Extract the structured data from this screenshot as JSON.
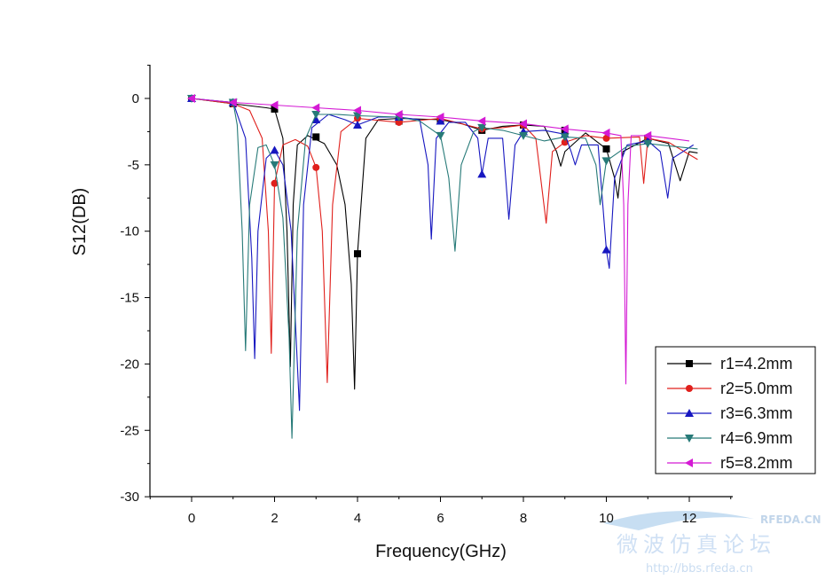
{
  "chart_data": {
    "type": "line",
    "title": "",
    "xlabel": "Frequency(GHz)",
    "ylabel": "S12(DB)",
    "xlim": [
      -1,
      13
    ],
    "ylim": [
      -30,
      2.5
    ],
    "xticks": [
      0,
      2,
      4,
      6,
      8,
      10,
      12
    ],
    "yticks": [
      0,
      -5,
      -10,
      -15,
      -20,
      -25,
      -30
    ],
    "grid": false,
    "legend_position": "bottom-right",
    "series": [
      {
        "name": "r1=4.2mm",
        "color": "#000000",
        "marker": "square",
        "markers": [
          [
            0,
            0
          ],
          [
            1,
            -0.4
          ],
          [
            2,
            -0.8
          ],
          [
            3,
            -2.9
          ],
          [
            4,
            -11.7
          ],
          [
            5,
            -1.7
          ],
          [
            6,
            -1.6
          ],
          [
            7,
            -2.4
          ],
          [
            8,
            -2.0
          ],
          [
            9,
            -2.4
          ],
          [
            10,
            -3.8
          ],
          [
            11,
            -3.0
          ]
        ],
        "points": [
          [
            0,
            0
          ],
          [
            1,
            -0.4
          ],
          [
            1.8,
            -0.7
          ],
          [
            2.0,
            -0.8
          ],
          [
            2.2,
            -3
          ],
          [
            2.3,
            -10
          ],
          [
            2.38,
            -20.2
          ],
          [
            2.45,
            -8
          ],
          [
            2.55,
            -3.5
          ],
          [
            2.8,
            -2.8
          ],
          [
            3.2,
            -3.4
          ],
          [
            3.5,
            -5
          ],
          [
            3.7,
            -8
          ],
          [
            3.85,
            -14
          ],
          [
            3.93,
            -21.9
          ],
          [
            4.0,
            -11.7
          ],
          [
            4.2,
            -3
          ],
          [
            4.5,
            -1.6
          ],
          [
            5,
            -1.5
          ],
          [
            6,
            -1.6
          ],
          [
            6.5,
            -1.9
          ],
          [
            7,
            -2.4
          ],
          [
            7.5,
            -2.1
          ],
          [
            8,
            -2.0
          ],
          [
            8.5,
            -2.1
          ],
          [
            8.8,
            -4
          ],
          [
            8.9,
            -5.1
          ],
          [
            9.0,
            -4
          ],
          [
            9.5,
            -2.6
          ],
          [
            10,
            -3.8
          ],
          [
            10.2,
            -6
          ],
          [
            10.28,
            -7.5
          ],
          [
            10.4,
            -4
          ],
          [
            11,
            -3.0
          ],
          [
            11.5,
            -3.4
          ],
          [
            11.78,
            -6.2
          ],
          [
            12.0,
            -4
          ],
          [
            12.2,
            -4.1
          ]
        ]
      },
      {
        "name": "r2=5.0mm",
        "color": "#e0201c",
        "marker": "circle",
        "markers": [
          [
            0,
            0
          ],
          [
            1,
            -0.4
          ],
          [
            2,
            -6.4
          ],
          [
            3,
            -5.2
          ],
          [
            4,
            -1.5
          ],
          [
            5,
            -1.8
          ],
          [
            6,
            -1.5
          ],
          [
            7,
            -2.3
          ],
          [
            8,
            -2.0
          ],
          [
            9,
            -3.3
          ],
          [
            10,
            -3.0
          ],
          [
            11,
            -3.0
          ]
        ],
        "points": [
          [
            0,
            0
          ],
          [
            1,
            -0.4
          ],
          [
            1.4,
            -0.9
          ],
          [
            1.7,
            -3
          ],
          [
            1.85,
            -10
          ],
          [
            1.92,
            -19.2
          ],
          [
            2.0,
            -6.4
          ],
          [
            2.2,
            -3.5
          ],
          [
            2.5,
            -3.1
          ],
          [
            2.8,
            -3.6
          ],
          [
            3.0,
            -5.2
          ],
          [
            3.15,
            -10
          ],
          [
            3.27,
            -21.4
          ],
          [
            3.4,
            -8
          ],
          [
            3.6,
            -2.5
          ],
          [
            4,
            -1.5
          ],
          [
            5,
            -1.8
          ],
          [
            6,
            -1.5
          ],
          [
            7,
            -2.3
          ],
          [
            7.5,
            -2.2
          ],
          [
            8,
            -2.0
          ],
          [
            8.3,
            -3
          ],
          [
            8.55,
            -9.4
          ],
          [
            8.7,
            -4
          ],
          [
            9,
            -3.3
          ],
          [
            9.5,
            -2.8
          ],
          [
            10,
            -3.0
          ],
          [
            10.8,
            -2.9
          ],
          [
            10.9,
            -6.4
          ],
          [
            11.0,
            -3.0
          ],
          [
            11.5,
            -3.3
          ],
          [
            12.2,
            -4.6
          ]
        ]
      },
      {
        "name": "r3=6.3mm",
        "color": "#1717c0",
        "marker": "triangle-up",
        "markers": [
          [
            0,
            0
          ],
          [
            1,
            -0.3
          ],
          [
            2,
            -3.9
          ],
          [
            3,
            -1.6
          ],
          [
            4,
            -2.0
          ],
          [
            5,
            -1.4
          ],
          [
            6,
            -1.7
          ],
          [
            7,
            -5.7
          ],
          [
            8,
            -2.5
          ],
          [
            9,
            -2.7
          ],
          [
            10,
            -11.4
          ],
          [
            11,
            -3.2
          ]
        ],
        "points": [
          [
            0,
            0
          ],
          [
            1,
            -0.3
          ],
          [
            1.3,
            -3
          ],
          [
            1.45,
            -12
          ],
          [
            1.52,
            -19.6
          ],
          [
            1.6,
            -10
          ],
          [
            1.8,
            -4.5
          ],
          [
            2.0,
            -3.9
          ],
          [
            2.2,
            -5
          ],
          [
            2.4,
            -10
          ],
          [
            2.55,
            -20
          ],
          [
            2.6,
            -23.5
          ],
          [
            2.7,
            -8
          ],
          [
            2.9,
            -2.2
          ],
          [
            3.3,
            -1.2
          ],
          [
            3.7,
            -1.6
          ],
          [
            4,
            -2.0
          ],
          [
            4.5,
            -1.4
          ],
          [
            5,
            -1.4
          ],
          [
            5.5,
            -1.6
          ],
          [
            5.7,
            -5
          ],
          [
            5.78,
            -10.6
          ],
          [
            5.9,
            -3
          ],
          [
            6.2,
            -1.8
          ],
          [
            6.6,
            -1.8
          ],
          [
            6.9,
            -3
          ],
          [
            7.0,
            -5.7
          ],
          [
            7.15,
            -3
          ],
          [
            7.5,
            -3
          ],
          [
            7.65,
            -9.1
          ],
          [
            7.8,
            -3.5
          ],
          [
            8,
            -2.5
          ],
          [
            8.5,
            -2.4
          ],
          [
            9,
            -2.7
          ],
          [
            9.15,
            -4
          ],
          [
            9.25,
            -5
          ],
          [
            9.4,
            -3.5
          ],
          [
            9.8,
            -3.5
          ],
          [
            10.0,
            -11.4
          ],
          [
            10.07,
            -12.8
          ],
          [
            10.2,
            -6
          ],
          [
            10.5,
            -3.5
          ],
          [
            11,
            -3.2
          ],
          [
            11.3,
            -4
          ],
          [
            11.48,
            -7.5
          ],
          [
            11.6,
            -4.5
          ],
          [
            12.1,
            -3.5
          ]
        ]
      },
      {
        "name": "r4=6.9mm",
        "color": "#277a78",
        "marker": "triangle-down",
        "markers": [
          [
            0,
            0
          ],
          [
            1,
            -0.3
          ],
          [
            2,
            -5.0
          ],
          [
            3,
            -1.2
          ],
          [
            4,
            -1.3
          ],
          [
            5,
            -1.4
          ],
          [
            6,
            -2.8
          ],
          [
            7,
            -2.2
          ],
          [
            8,
            -2.8
          ],
          [
            9,
            -2.9
          ],
          [
            10,
            -4.7
          ],
          [
            11,
            -3.4
          ]
        ],
        "points": [
          [
            0,
            0
          ],
          [
            1,
            -0.3
          ],
          [
            1.1,
            -2
          ],
          [
            1.22,
            -10
          ],
          [
            1.3,
            -19
          ],
          [
            1.4,
            -8
          ],
          [
            1.6,
            -3.7
          ],
          [
            1.8,
            -3.5
          ],
          [
            2.0,
            -5.0
          ],
          [
            2.2,
            -9
          ],
          [
            2.35,
            -18
          ],
          [
            2.42,
            -25.6
          ],
          [
            2.55,
            -10
          ],
          [
            2.75,
            -3
          ],
          [
            3,
            -1.2
          ],
          [
            3.5,
            -1.2
          ],
          [
            4,
            -1.3
          ],
          [
            5,
            -1.4
          ],
          [
            5.5,
            -1.7
          ],
          [
            6,
            -2.8
          ],
          [
            6.2,
            -6
          ],
          [
            6.35,
            -11.5
          ],
          [
            6.5,
            -5
          ],
          [
            6.8,
            -2.5
          ],
          [
            7,
            -2.2
          ],
          [
            7.5,
            -2.4
          ],
          [
            8,
            -2.8
          ],
          [
            8.5,
            -3.2
          ],
          [
            9,
            -2.9
          ],
          [
            9.5,
            -3.0
          ],
          [
            9.75,
            -5
          ],
          [
            9.85,
            -8
          ],
          [
            10,
            -4.7
          ],
          [
            10.5,
            -3.6
          ],
          [
            11,
            -3.4
          ],
          [
            12.2,
            -3.8
          ]
        ]
      },
      {
        "name": "r5=8.2mm",
        "color": "#d41ad4",
        "marker": "triangle-left",
        "markers": [
          [
            0,
            0
          ],
          [
            1,
            -0.3
          ],
          [
            2,
            -0.5
          ],
          [
            3,
            -0.7
          ],
          [
            4,
            -0.9
          ],
          [
            5,
            -1.2
          ],
          [
            6,
            -1.4
          ],
          [
            7,
            -1.7
          ],
          [
            8,
            -1.9
          ],
          [
            9,
            -2.3
          ],
          [
            10,
            -2.6
          ],
          [
            11,
            -2.8
          ]
        ],
        "points": [
          [
            0,
            0
          ],
          [
            1,
            -0.3
          ],
          [
            2,
            -0.5
          ],
          [
            3,
            -0.7
          ],
          [
            4,
            -0.9
          ],
          [
            5,
            -1.2
          ],
          [
            6,
            -1.4
          ],
          [
            7,
            -1.7
          ],
          [
            8,
            -1.9
          ],
          [
            9,
            -2.3
          ],
          [
            10,
            -2.6
          ],
          [
            10.35,
            -2.8
          ],
          [
            10.42,
            -8
          ],
          [
            10.47,
            -21.5
          ],
          [
            10.52,
            -8
          ],
          [
            10.6,
            -2.8
          ],
          [
            11,
            -2.8
          ],
          [
            12,
            -3.2
          ]
        ]
      }
    ]
  },
  "watermark": {
    "site_label": "RFEDA.CN",
    "forum_name": "微波仿真论坛",
    "url": "http://bbs.rfeda.cn"
  }
}
